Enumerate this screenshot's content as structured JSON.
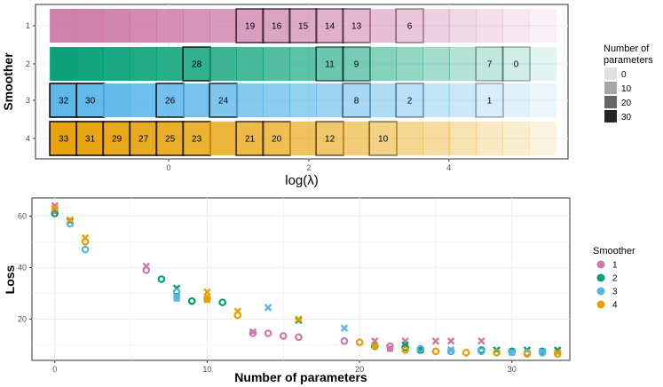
{
  "colors": {
    "smoother_1": "#CC79A7",
    "smoother_2": "#009E73",
    "smoother_3": "#56B4E9",
    "smoother_4": "#E69F00",
    "panel_border": "#333333",
    "grid": "#ebebeb"
  },
  "chart_data": [
    {
      "type": "heatmap",
      "title": "",
      "xlabel": "log(λ)",
      "ylabel": "Smoother",
      "x_ticks": [
        "0",
        "2",
        "4"
      ],
      "y_ticks": [
        "1",
        "2",
        "3",
        "4"
      ],
      "x_values": [
        -1.5,
        -1.12,
        -0.74,
        -0.36,
        0.02,
        0.4,
        0.78,
        1.16,
        1.54,
        1.92,
        2.3,
        2.68,
        3.06,
        3.44,
        3.82,
        4.2,
        4.58,
        4.96,
        5.34
      ],
      "xlim": [
        -1.9,
        5.7
      ],
      "alpha_by_column": [
        0.95,
        0.93,
        0.9,
        0.87,
        0.84,
        0.8,
        0.76,
        0.72,
        0.68,
        0.63,
        0.58,
        0.53,
        0.48,
        0.42,
        0.36,
        0.3,
        0.24,
        0.18,
        0.12
      ],
      "rows": [
        {
          "smoother": "1",
          "labels": [
            {
              "col": 7,
              "text": "19"
            },
            {
              "col": 8,
              "text": "16"
            },
            {
              "col": 9,
              "text": "15"
            },
            {
              "col": 10,
              "text": "14"
            },
            {
              "col": 11,
              "text": "13"
            },
            {
              "col": 13,
              "text": "6"
            }
          ]
        },
        {
          "smoother": "2",
          "labels": [
            {
              "col": 5,
              "text": "28"
            },
            {
              "col": 10,
              "text": "11"
            },
            {
              "col": 11,
              "text": "9"
            },
            {
              "col": 16,
              "text": "7"
            },
            {
              "col": 17,
              "text": "0"
            }
          ]
        },
        {
          "smoother": "3",
          "labels": [
            {
              "col": 0,
              "text": "32"
            },
            {
              "col": 1,
              "text": "30"
            },
            {
              "col": 4,
              "text": "26"
            },
            {
              "col": 6,
              "text": "24"
            },
            {
              "col": 11,
              "text": "8"
            },
            {
              "col": 13,
              "text": "2"
            },
            {
              "col": 16,
              "text": "1"
            }
          ]
        },
        {
          "smoother": "4",
          "labels": [
            {
              "col": 0,
              "text": "33"
            },
            {
              "col": 1,
              "text": "31"
            },
            {
              "col": 2,
              "text": "29"
            },
            {
              "col": 3,
              "text": "27"
            },
            {
              "col": 4,
              "text": "25"
            },
            {
              "col": 5,
              "text": "23"
            },
            {
              "col": 7,
              "text": "21"
            },
            {
              "col": 8,
              "text": "20"
            },
            {
              "col": 10,
              "text": "12"
            },
            {
              "col": 12,
              "text": "10"
            }
          ]
        }
      ],
      "legend": {
        "title_line1": "Number of",
        "title_line2": "parameters",
        "entries": [
          {
            "label": "0",
            "alpha": 0.12
          },
          {
            "label": "10",
            "alpha": 0.35
          },
          {
            "label": "20",
            "alpha": 0.6
          },
          {
            "label": "30",
            "alpha": 0.85
          }
        ]
      }
    },
    {
      "type": "scatter",
      "title": "",
      "xlabel": "Number of parameters",
      "ylabel": "Loss",
      "xlim": [
        -1.5,
        33.8
      ],
      "ylim": [
        4,
        67
      ],
      "x_ticks": [
        "0",
        "10",
        "20",
        "30"
      ],
      "y_ticks": [
        "20",
        "40",
        "60"
      ],
      "legend": {
        "title": "Smoother",
        "entries": [
          "1",
          "2",
          "3",
          "4"
        ]
      },
      "series": [
        {
          "name": "1",
          "circle": [
            [
              6,
              39
            ],
            [
              13,
              14.5
            ],
            [
              14,
              14.5
            ],
            [
              15,
              13.5
            ],
            [
              16,
              13
            ],
            [
              19,
              11.5
            ],
            [
              22,
              9.5
            ]
          ],
          "cross": [
            [
              0,
              64
            ],
            [
              6,
              40.5
            ],
            [
              13,
              15
            ],
            [
              21,
              11.5
            ],
            [
              23,
              11.5
            ],
            [
              25,
              11.5
            ],
            [
              26,
              11.5
            ],
            [
              28,
              11.5
            ]
          ],
          "square": [
            [
              0,
              62
            ],
            [
              22,
              8.5
            ]
          ]
        },
        {
          "name": "2",
          "circle": [
            [
              0,
              61
            ],
            [
              7,
              35.5
            ],
            [
              9,
              27
            ],
            [
              11,
              26.5
            ],
            [
              21,
              9.5
            ],
            [
              23,
              9
            ],
            [
              24,
              8
            ],
            [
              26,
              7.5
            ],
            [
              28,
              8
            ],
            [
              30,
              7.5
            ],
            [
              32,
              7.5
            ]
          ],
          "cross": [
            [
              1,
              58
            ],
            [
              8,
              32
            ],
            [
              16,
              19.5
            ],
            [
              23,
              10
            ],
            [
              29,
              8
            ],
            [
              31,
              8
            ],
            [
              33,
              8
            ]
          ],
          "square": [
            [
              8,
              29
            ],
            [
              24,
              8
            ]
          ]
        },
        {
          "name": "3",
          "circle": [
            [
              1,
              57
            ],
            [
              2,
              47
            ],
            [
              8,
              30.5
            ],
            [
              24,
              8.5
            ],
            [
              26,
              7.5
            ],
            [
              28,
              7.5
            ],
            [
              31,
              7
            ],
            [
              32,
              7
            ]
          ],
          "cross": [
            [
              14,
              24.5
            ],
            [
              19,
              16.5
            ],
            [
              26,
              8
            ],
            [
              32,
              7.5
            ]
          ],
          "square": [
            [
              8,
              28
            ],
            [
              30,
              7
            ]
          ]
        },
        {
          "name": "4",
          "circle": [
            [
              2,
              50
            ],
            [
              10,
              28
            ],
            [
              12,
              21.5
            ],
            [
              20,
              11
            ],
            [
              23,
              8
            ],
            [
              25,
              7.5
            ],
            [
              27,
              7
            ],
            [
              29,
              7
            ],
            [
              31,
              6.5
            ],
            [
              33,
              6.5
            ]
          ],
          "cross": [
            [
              0,
              63
            ],
            [
              1,
              58.5
            ],
            [
              2,
              51.5
            ],
            [
              10,
              30.5
            ],
            [
              12,
              23
            ],
            [
              16,
              20
            ],
            [
              33,
              7
            ]
          ],
          "square": [
            [
              10,
              27.5
            ],
            [
              21,
              9.5
            ]
          ]
        }
      ]
    }
  ]
}
